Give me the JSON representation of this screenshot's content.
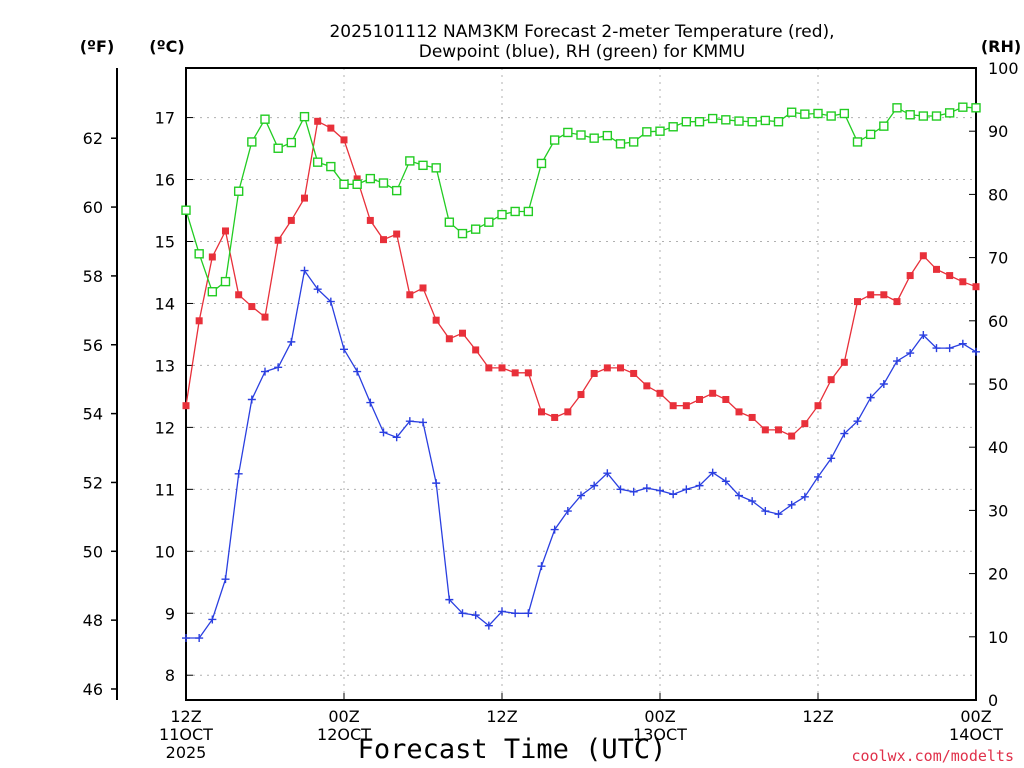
{
  "chart_data": {
    "type": "line",
    "title_lines": [
      "2025101112 NAM3KM Forecast 2-meter Temperature (red),",
      "Dewpoint (blue), RH (green) for KMMU"
    ],
    "xlabel": "Forecast Time (UTC)",
    "credit": "coolwx.com/modelts",
    "units": {
      "fahrenheit": "(ºF)",
      "celsius": "(ºC)",
      "rh": "(RH)"
    },
    "x_range_hours": [
      0,
      60
    ],
    "x_ticks": [
      {
        "hour": 0,
        "lines": [
          "12Z",
          "11OCT",
          "2025"
        ]
      },
      {
        "hour": 12,
        "lines": [
          "00Z",
          "12OCT"
        ]
      },
      {
        "hour": 24,
        "lines": [
          "12Z"
        ]
      },
      {
        "hour": 36,
        "lines": [
          "00Z",
          "13OCT"
        ]
      },
      {
        "hour": 48,
        "lines": [
          "12Z"
        ]
      },
      {
        "hour": 60,
        "lines": [
          "00Z",
          "14OCT"
        ]
      }
    ],
    "celsius_range": [
      7.6,
      17.8
    ],
    "celsius_ticks": [
      8,
      9,
      10,
      11,
      12,
      13,
      14,
      15,
      16,
      17
    ],
    "fahrenheit_ticks": [
      46,
      48,
      50,
      52,
      54,
      56,
      58,
      60,
      62
    ],
    "rh_range": [
      0,
      100
    ],
    "rh_ticks": [
      0,
      10,
      20,
      30,
      40,
      50,
      60,
      70,
      80,
      90,
      100
    ],
    "grid": true,
    "series": [
      {
        "name": "Temperature",
        "color": "#e8303a",
        "marker": "filled-square",
        "axis": "celsius",
        "values": [
          12.35,
          13.72,
          14.75,
          15.17,
          14.14,
          13.95,
          13.78,
          15.02,
          15.34,
          15.7,
          16.94,
          16.83,
          16.64,
          16.01,
          15.34,
          15.03,
          15.12,
          14.14,
          14.25,
          13.73,
          13.43,
          13.52,
          13.25,
          12.96,
          12.96,
          12.88,
          12.88,
          12.25,
          12.16,
          12.25,
          12.53,
          12.87,
          12.96,
          12.96,
          12.87,
          12.67,
          12.55,
          12.35,
          12.35,
          12.45,
          12.55,
          12.45,
          12.25,
          12.16,
          11.96,
          11.96,
          11.86,
          12.06,
          12.35,
          12.77,
          13.05,
          14.03,
          14.14,
          14.14,
          14.03,
          14.45,
          14.77,
          14.55,
          14.45,
          14.35,
          14.27
        ]
      },
      {
        "name": "Dewpoint",
        "color": "#2a3fe0",
        "marker": "plus",
        "axis": "celsius",
        "values": [
          8.6,
          8.6,
          8.9,
          9.55,
          11.25,
          12.45,
          12.9,
          12.97,
          13.38,
          14.53,
          14.23,
          14.03,
          13.26,
          12.9,
          12.4,
          11.92,
          11.84,
          12.1,
          12.08,
          11.1,
          9.22,
          9.0,
          8.97,
          8.8,
          9.03,
          9.0,
          9.0,
          9.76,
          10.35,
          10.65,
          10.9,
          11.06,
          11.26,
          11.0,
          10.96,
          11.02,
          10.98,
          10.92,
          11.0,
          11.06,
          11.27,
          11.13,
          10.9,
          10.81,
          10.65,
          10.6,
          10.75,
          10.88,
          11.2,
          11.5,
          11.9,
          12.1,
          12.48,
          12.7,
          13.07,
          13.2,
          13.49,
          13.28,
          13.28,
          13.35,
          13.22
        ]
      },
      {
        "name": "RH",
        "color": "#22cc22",
        "marker": "open-square",
        "axis": "rh",
        "values": [
          77.5,
          70.6,
          64.6,
          66.2,
          80.5,
          88.3,
          91.9,
          87.3,
          88.2,
          92.3,
          85.1,
          84.4,
          81.6,
          81.6,
          82.5,
          81.8,
          80.6,
          85.3,
          84.6,
          84.2,
          75.6,
          73.8,
          74.5,
          75.6,
          76.8,
          77.3,
          77.3,
          84.9,
          88.6,
          89.8,
          89.4,
          88.9,
          89.3,
          88.0,
          88.3,
          89.9,
          90.0,
          90.7,
          91.5,
          91.5,
          92.0,
          91.8,
          91.6,
          91.5,
          91.7,
          91.5,
          93.0,
          92.7,
          92.8,
          92.4,
          92.8,
          88.3,
          89.5,
          90.8,
          93.7,
          92.6,
          92.4,
          92.4,
          92.9,
          93.8,
          93.7
        ]
      }
    ]
  }
}
